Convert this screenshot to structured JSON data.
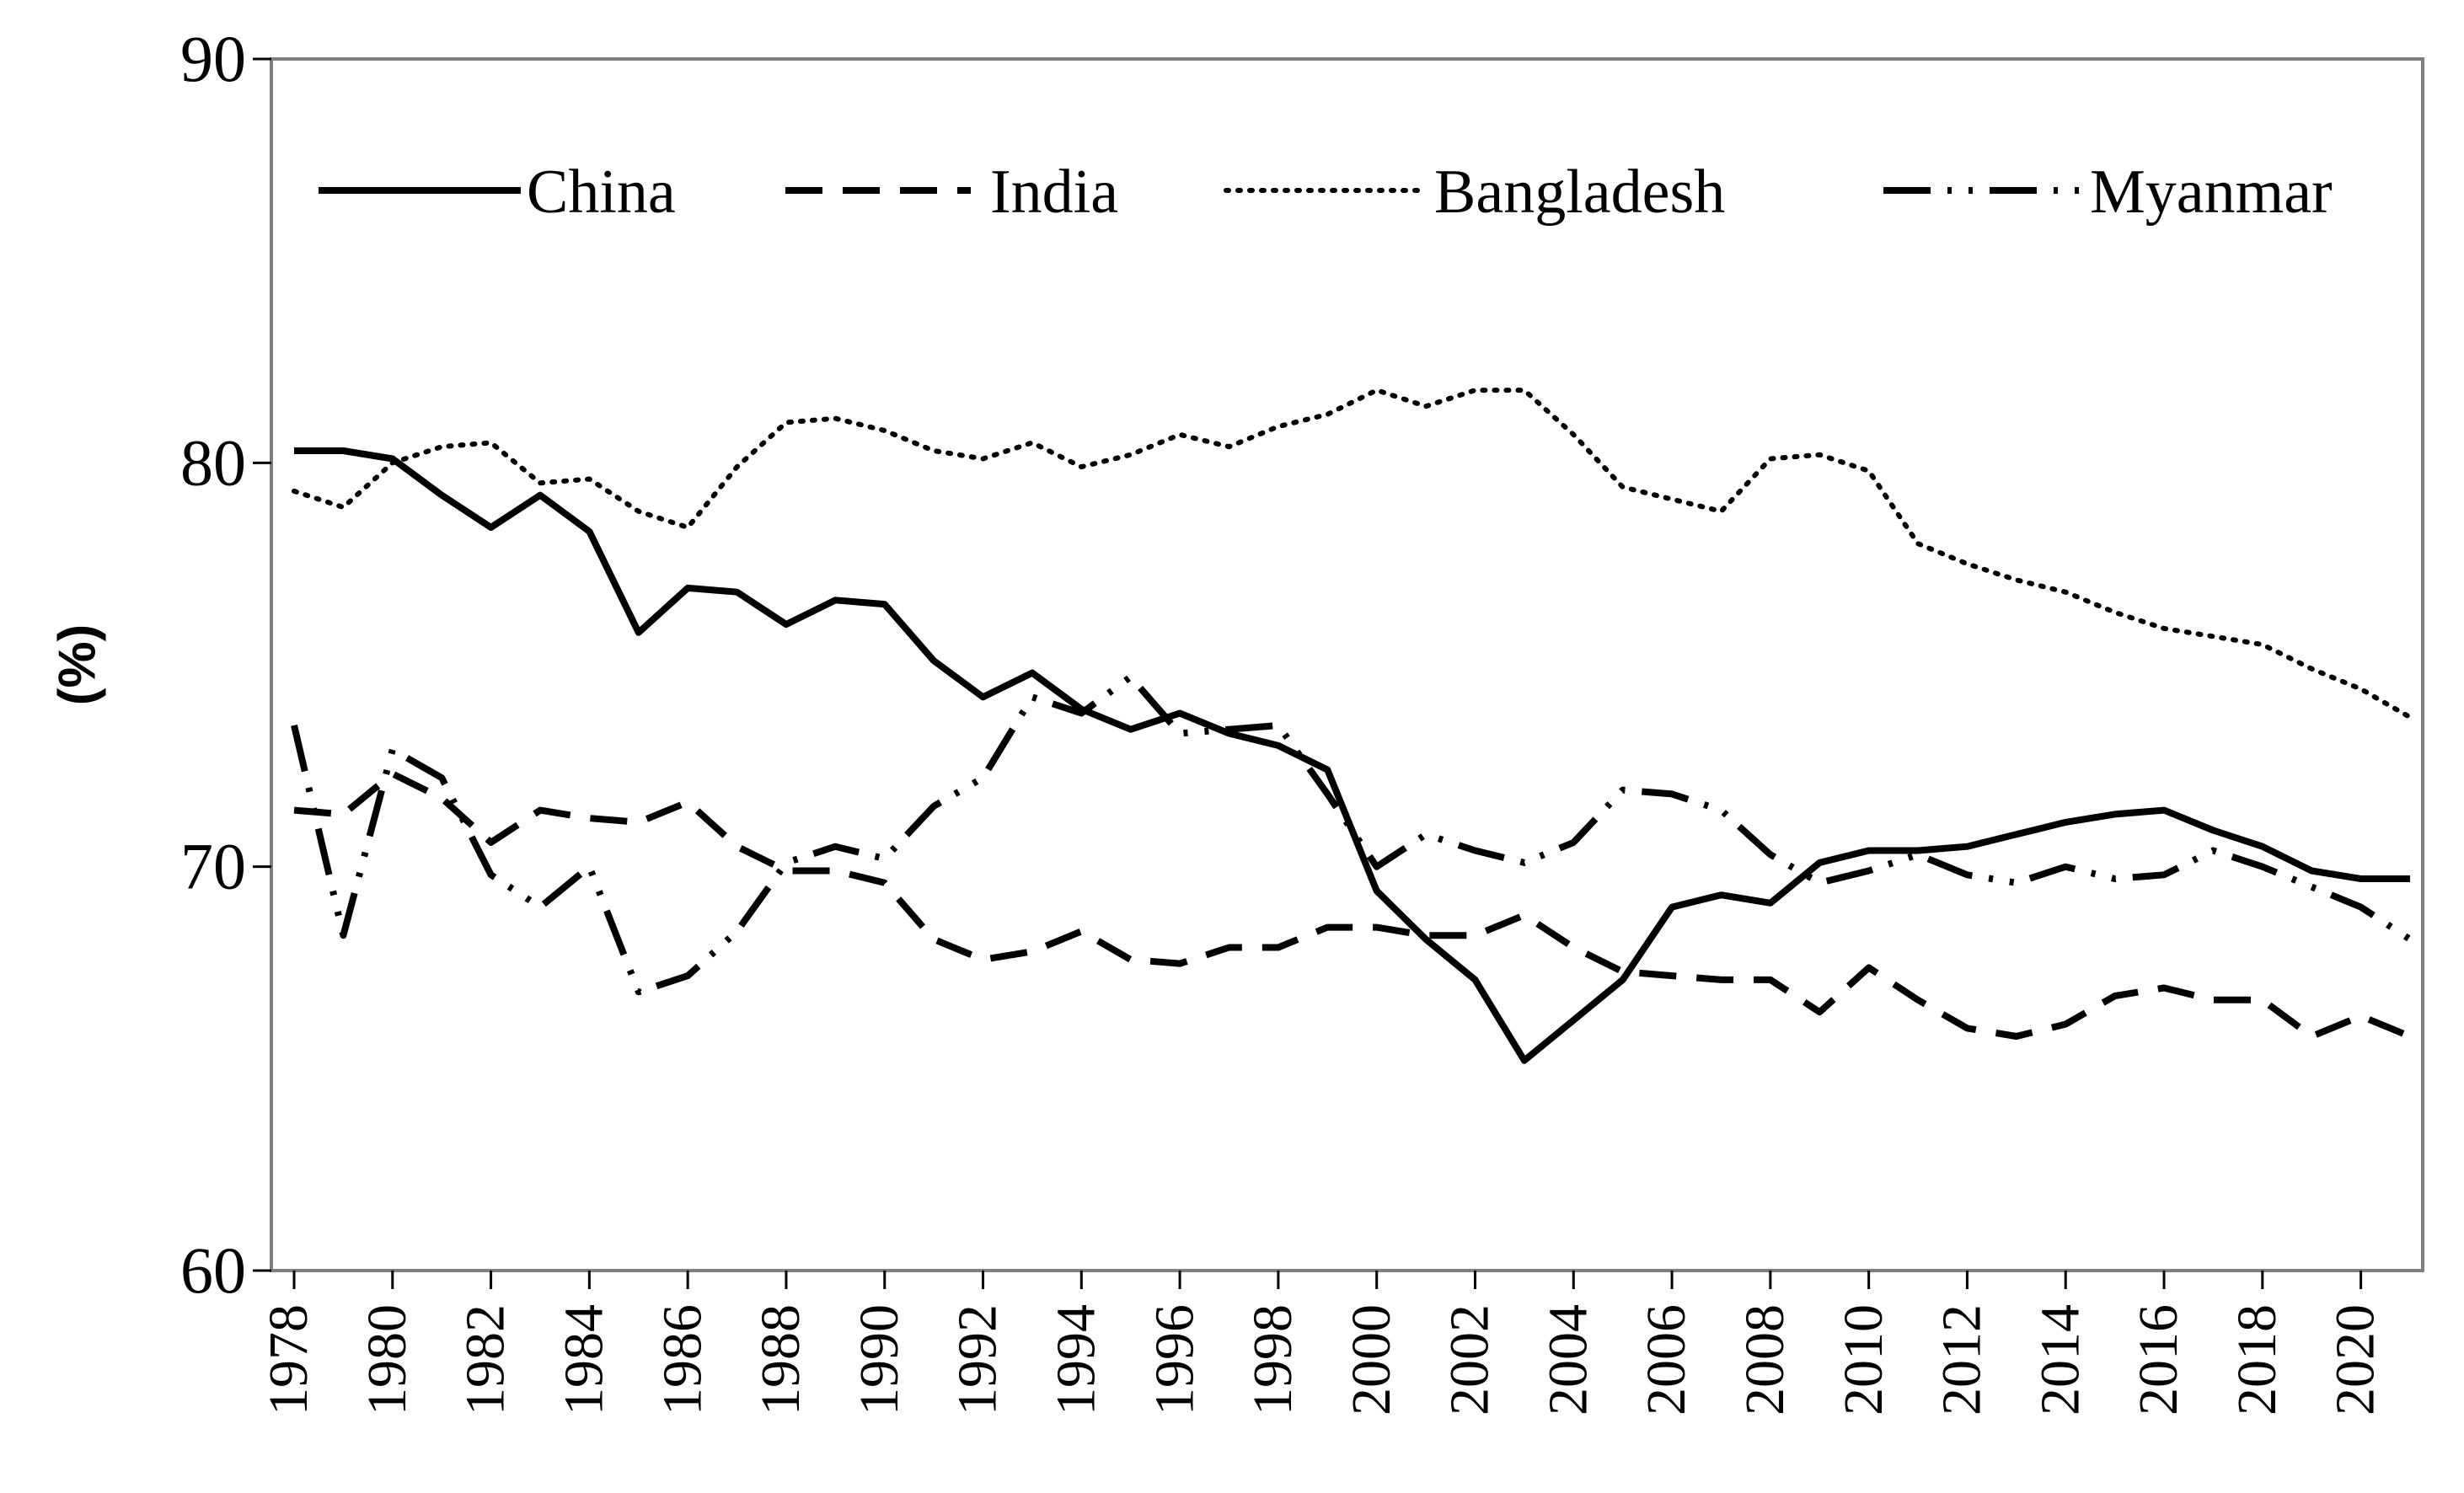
{
  "chart_data": {
    "type": "line",
    "title": "",
    "xlabel": "",
    "ylabel": "(%)",
    "ylim": [
      60,
      90
    ],
    "yticks": [
      "60",
      "70",
      "80",
      "90"
    ],
    "xlim": [
      1978,
      2021
    ],
    "xticks": [
      "1978",
      "1980",
      "1982",
      "1984",
      "1986",
      "1988",
      "1990",
      "1992",
      "1994",
      "1996",
      "1998",
      "2000",
      "2002",
      "2004",
      "2006",
      "2008",
      "2010",
      "2012",
      "2014",
      "2016",
      "2018",
      "2020"
    ],
    "legend_position": "top",
    "x": [
      1978,
      1979,
      1980,
      1981,
      1982,
      1983,
      1984,
      1985,
      1986,
      1987,
      1988,
      1989,
      1990,
      1991,
      1992,
      1993,
      1994,
      1995,
      1996,
      1997,
      1998,
      1999,
      2000,
      2001,
      2002,
      2003,
      2004,
      2005,
      2006,
      2007,
      2008,
      2009,
      2010,
      2011,
      2012,
      2013,
      2014,
      2015,
      2016,
      2017,
      2018,
      2019,
      2020,
      2021
    ],
    "series": [
      {
        "name": "China",
        "style": "solid",
        "values": [
          80.3,
          80.3,
          80.1,
          79.2,
          78.4,
          79.2,
          78.3,
          75.8,
          76.9,
          76.8,
          76.0,
          76.6,
          76.5,
          75.1,
          74.2,
          74.8,
          73.9,
          73.4,
          73.8,
          73.3,
          73.0,
          72.4,
          69.4,
          68.2,
          67.2,
          65.2,
          66.2,
          67.2,
          69.0,
          69.3,
          69.1,
          70.1,
          70.4,
          70.4,
          70.5,
          70.8,
          71.1,
          71.3,
          71.4,
          70.9,
          70.5,
          69.9,
          69.7,
          69.7
        ]
      },
      {
        "name": "India",
        "style": "dashed",
        "values": [
          71.4,
          71.3,
          72.3,
          71.7,
          70.6,
          71.4,
          71.2,
          71.1,
          71.6,
          70.5,
          69.9,
          69.9,
          69.6,
          68.2,
          67.7,
          67.9,
          68.4,
          67.7,
          67.6,
          68.0,
          68.0,
          68.5,
          68.5,
          68.3,
          68.3,
          68.8,
          68.0,
          67.4,
          67.3,
          67.2,
          67.2,
          66.4,
          67.5,
          66.7,
          66.0,
          65.8,
          66.1,
          66.8,
          67.0,
          66.7,
          66.7,
          65.8,
          66.3,
          65.8
        ]
      },
      {
        "name": "Bangladesh",
        "style": "dotted",
        "values": [
          79.3,
          78.9,
          80.0,
          80.4,
          80.5,
          79.5,
          79.6,
          78.8,
          78.4,
          79.9,
          81.0,
          81.1,
          80.8,
          80.3,
          80.1,
          80.5,
          79.9,
          80.2,
          80.7,
          80.4,
          80.9,
          81.2,
          81.8,
          81.4,
          81.8,
          81.8,
          80.7,
          79.4,
          79.1,
          78.8,
          80.1,
          80.2,
          79.8,
          78.0,
          77.5,
          77.1,
          76.8,
          76.3,
          75.9,
          75.7,
          75.5,
          74.9,
          74.4,
          73.7
        ]
      },
      {
        "name": "Myanmar",
        "style": "dashdotdot",
        "values": [
          73.5,
          68.3,
          72.9,
          72.2,
          69.8,
          69.0,
          70.0,
          66.9,
          67.3,
          68.4,
          70.1,
          70.5,
          70.2,
          71.5,
          72.2,
          74.2,
          73.8,
          74.7,
          73.3,
          73.4,
          73.5,
          71.8,
          70.0,
          70.8,
          70.4,
          70.1,
          70.6,
          71.9,
          71.8,
          71.4,
          70.3,
          69.6,
          69.9,
          70.3,
          69.8,
          69.6,
          70.0,
          69.7,
          69.8,
          70.4,
          70.0,
          69.5,
          69.0,
          68.2
        ]
      }
    ]
  }
}
